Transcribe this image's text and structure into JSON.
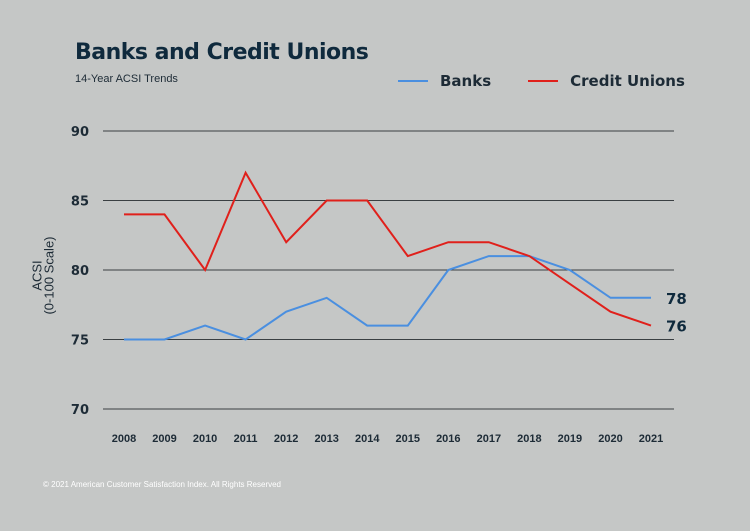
{
  "chart_data": {
    "type": "line",
    "title": "Banks and Credit Unions",
    "subtitle": "14-Year ACSI Trends",
    "ylabel_line1": "ACSI",
    "ylabel_line2": "(0-100 Scale)",
    "ylim": [
      70,
      90
    ],
    "yticks": [
      "90",
      "85",
      "80",
      "75",
      "70"
    ],
    "grid": true,
    "legend_position": "top-right",
    "categories": [
      "2008",
      "2009",
      "2010",
      "2011",
      "2012",
      "2013",
      "2014",
      "2015",
      "2016",
      "2017",
      "2018",
      "2019",
      "2020",
      "2021"
    ],
    "series": [
      {
        "name": "Banks",
        "color": "#4a8fe0",
        "values": [
          75,
          75,
          76,
          75,
          77,
          78,
          76,
          76,
          80,
          81,
          81,
          80,
          78,
          78
        ],
        "end_label": "78"
      },
      {
        "name": "Credit Unions",
        "color": "#e0201b",
        "values": [
          84,
          84,
          80,
          87,
          82,
          85,
          85,
          81,
          82,
          82,
          81,
          79,
          77,
          76
        ],
        "end_label": "76"
      }
    ]
  },
  "footer": "© 2021 American Customer Satisfaction Index. All Rights Reserved"
}
